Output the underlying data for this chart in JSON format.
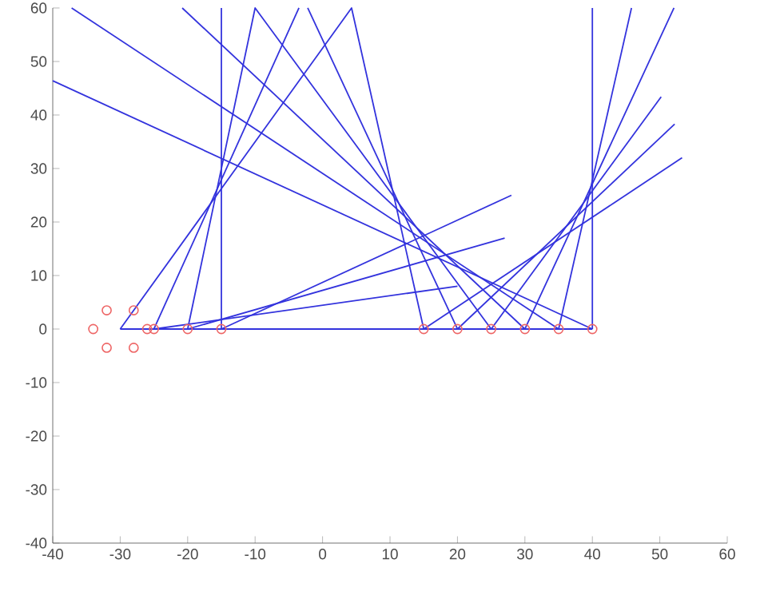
{
  "chart_data": {
    "type": "line",
    "xlim": [
      -40,
      60
    ],
    "ylim": [
      -40,
      60
    ],
    "xticks": [
      -40,
      -30,
      -20,
      -10,
      0,
      10,
      20,
      30,
      40,
      50,
      60
    ],
    "yticks": [
      -40,
      -30,
      -20,
      -10,
      0,
      10,
      20,
      30,
      40,
      50,
      60
    ],
    "line_style": "solid",
    "series": [
      {
        "color": "#3333dd",
        "x": [
          -30,
          40
        ],
        "values": [
          0,
          0
        ]
      },
      {
        "color": "#3333dd",
        "x": [
          -30,
          4.3,
          15
        ],
        "values": [
          0,
          60,
          0
        ]
      },
      {
        "color": "#3333dd",
        "x": [
          -25,
          -3.5
        ],
        "values": [
          0,
          60
        ]
      },
      {
        "color": "#3333dd",
        "x": [
          -2.2,
          20
        ],
        "values": [
          60,
          0
        ]
      },
      {
        "color": "#3333dd",
        "x": [
          -20,
          -10,
          25
        ],
        "values": [
          0,
          60,
          0
        ]
      },
      {
        "color": "#3333dd",
        "x": [
          -15,
          -15
        ],
        "values": [
          0,
          60
        ]
      },
      {
        "color": "#3333dd",
        "x": [
          -20.8,
          30
        ],
        "values": [
          60,
          0
        ]
      },
      {
        "color": "#3333dd",
        "x": [
          -37.2,
          35
        ],
        "values": [
          60,
          0
        ]
      },
      {
        "color": "#3333dd",
        "x": [
          -40,
          40
        ],
        "values": [
          46.4,
          0
        ]
      },
      {
        "color": "#3333dd",
        "x": [
          -15,
          28
        ],
        "values": [
          0,
          25
        ]
      },
      {
        "color": "#3333dd",
        "x": [
          -20,
          27
        ],
        "values": [
          0,
          17
        ]
      },
      {
        "color": "#3333dd",
        "x": [
          -25,
          20
        ],
        "values": [
          0,
          8
        ]
      },
      {
        "color": "#3333dd",
        "x": [
          15,
          53.3
        ],
        "values": [
          0,
          32
        ]
      },
      {
        "color": "#3333dd",
        "x": [
          20,
          52.2
        ],
        "values": [
          0,
          38.3
        ]
      },
      {
        "color": "#3333dd",
        "x": [
          25,
          50.2
        ],
        "values": [
          0,
          43.4
        ]
      },
      {
        "color": "#3333dd",
        "x": [
          30,
          52.1
        ],
        "values": [
          0,
          60
        ]
      },
      {
        "color": "#3333dd",
        "x": [
          35,
          45.8
        ],
        "values": [
          0,
          60
        ]
      },
      {
        "color": "#3333dd",
        "x": [
          40,
          40
        ],
        "values": [
          0,
          60
        ]
      },
      {
        "type": "scatter",
        "marker": "circle",
        "color": "#ee6666",
        "x": [
          -34,
          -32,
          -28,
          -26,
          -28,
          -32,
          -25,
          -20,
          -15,
          15,
          20,
          25,
          30,
          35,
          40
        ],
        "values": [
          0,
          3.5,
          3.5,
          0,
          -3.5,
          -3.5,
          0,
          0,
          0,
          0,
          0,
          0,
          0,
          0,
          0
        ]
      }
    ]
  }
}
